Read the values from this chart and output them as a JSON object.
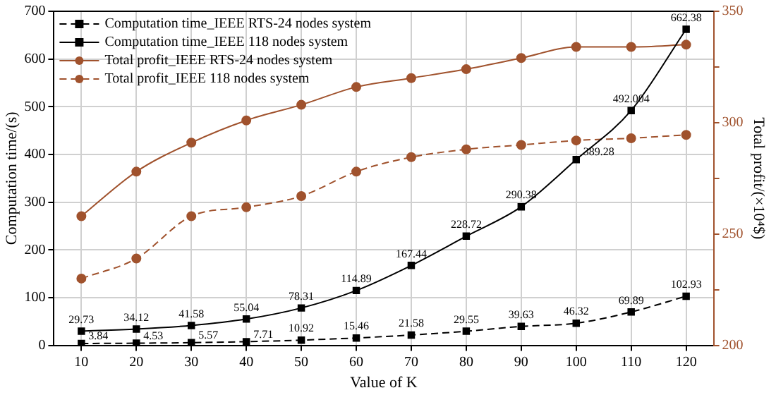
{
  "chart_data": {
    "type": "line",
    "xlabel": "Value of K",
    "ylabel": "Computation time/(s)",
    "y2label": "Total profit/(×10⁴$)",
    "x": [
      10,
      20,
      30,
      40,
      50,
      60,
      70,
      80,
      90,
      100,
      110,
      120
    ],
    "xlim": [
      5,
      125
    ],
    "xticks": [
      10,
      20,
      30,
      40,
      50,
      60,
      70,
      80,
      90,
      100,
      110,
      120
    ],
    "ylim": [
      0,
      700
    ],
    "yticks": [
      0,
      100,
      200,
      300,
      400,
      500,
      600,
      700
    ],
    "y2lim": [
      200,
      350
    ],
    "y2ticks": [
      200,
      {
        "value": 225,
        "label": null
      },
      250,
      {
        "value": 275,
        "label": null
      },
      300,
      {
        "value": 325,
        "label": null
      },
      350
    ],
    "grid": true,
    "legend": "top left",
    "series": [
      {
        "name": "Computation time_IEEE RTS-24 nodes system",
        "color": "#000000",
        "marker": "square",
        "line_style": "dashed",
        "values": [
          3.84,
          4.53,
          5.57,
          7.71,
          10.92,
          15.46,
          21.58,
          29.55,
          39.63,
          46.32,
          69.89,
          102.93
        ],
        "value_labels": [
          "3.84",
          "4.53",
          "5.57",
          "7.71",
          "10.92",
          "15.46",
          "21.58",
          "29.55",
          "39.63",
          "46.32",
          "69.89",
          "102.93"
        ]
      },
      {
        "name": "Computation time_IEEE 118 nodes system",
        "color": "#000000",
        "marker": "square",
        "line_style": "solid",
        "values": [
          29.73,
          34.12,
          41.58,
          55.04,
          78.31,
          114.89,
          167.44,
          228.72,
          290.38,
          389.28,
          492.004,
          662.38
        ],
        "value_labels": [
          "29.73",
          "34.12",
          "41.58",
          "55.04",
          "78.31",
          "114.89",
          "167.44",
          "228.72",
          "290.38",
          "389.28",
          "492.004",
          "662.38"
        ]
      },
      {
        "name": "Total profit_IEEE RTS-24 nodes system",
        "color": "#a0522d",
        "marker": "circle",
        "line_style": "solid",
        "axis": "y2",
        "values": [
          258,
          278,
          291,
          301,
          308,
          316,
          320,
          324,
          329,
          334,
          334,
          335
        ]
      },
      {
        "name": "Total profit_IEEE 118 nodes system",
        "color": "#a0522d",
        "marker": "circle",
        "line_style": "dashed",
        "axis": "y2",
        "values": [
          230,
          239,
          258,
          262,
          267,
          278,
          284.5,
          288,
          290,
          292,
          293,
          294.5
        ]
      }
    ]
  }
}
